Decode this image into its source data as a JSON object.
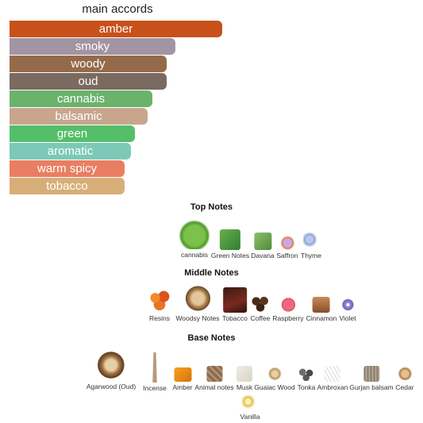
{
  "accords": {
    "title": "main accords",
    "items": [
      {
        "label": "amber",
        "color": "#C8501A",
        "value": 100
      },
      {
        "label": "smoky",
        "color": "#A394A4",
        "value": 78
      },
      {
        "label": "woody",
        "color": "#946B4A",
        "value": 74
      },
      {
        "label": "oud",
        "color": "#7A6A60",
        "value": 74
      },
      {
        "label": "cannabis",
        "color": "#6BB26B",
        "value": 67
      },
      {
        "label": "balsamic",
        "color": "#C8A68E",
        "value": 65
      },
      {
        "label": "green",
        "color": "#55BE68",
        "value": 59
      },
      {
        "label": "aromatic",
        "color": "#7CC9B8",
        "value": 57
      },
      {
        "label": "warm spicy",
        "color": "#E97E62",
        "value": 54
      },
      {
        "label": "tobacco",
        "color": "#D8AE78",
        "value": 54
      }
    ]
  },
  "notes": {
    "top": {
      "title": "Top Notes",
      "items": [
        {
          "label": "cannabis",
          "icon": "cannabis-icon"
        },
        {
          "label": "Green Notes",
          "icon": "green-notes-icon"
        },
        {
          "label": "Davana",
          "icon": "davana-icon"
        },
        {
          "label": "Saffron",
          "icon": "saffron-icon"
        },
        {
          "label": "Thyme",
          "icon": "thyme-icon"
        }
      ]
    },
    "middle": {
      "title": "Middle Notes",
      "items": [
        {
          "label": "Resins",
          "icon": "resins-icon"
        },
        {
          "label": "Woodsy Notes",
          "icon": "woodsy-notes-icon"
        },
        {
          "label": "Tobacco",
          "icon": "tobacco-icon"
        },
        {
          "label": "Coffee",
          "icon": "coffee-icon"
        },
        {
          "label": "Raspberry",
          "icon": "raspberry-icon"
        },
        {
          "label": "Cinnamon",
          "icon": "cinnamon-icon"
        },
        {
          "label": "Violet",
          "icon": "violet-icon"
        }
      ]
    },
    "base": {
      "title": "Base Notes",
      "items": [
        {
          "label": "Agarwood (Oud)",
          "icon": "agarwood-icon"
        },
        {
          "label": "Incense",
          "icon": "incense-icon"
        },
        {
          "label": "Amber",
          "icon": "amber-icon"
        },
        {
          "label": "Animal notes",
          "icon": "animal-notes-icon"
        },
        {
          "label": "Musk",
          "icon": "musk-icon"
        },
        {
          "label": "Guaiac Wood",
          "icon": "guaiac-wood-icon"
        },
        {
          "label": "Tonka",
          "icon": "tonka-icon"
        },
        {
          "label": "Ambroxan",
          "icon": "ambroxan-icon"
        },
        {
          "label": "Gurjan balsam",
          "icon": "gurjan-balsam-icon"
        },
        {
          "label": "Cedar",
          "icon": "cedar-icon"
        },
        {
          "label": "Vanilla",
          "icon": "vanilla-icon"
        }
      ]
    }
  }
}
